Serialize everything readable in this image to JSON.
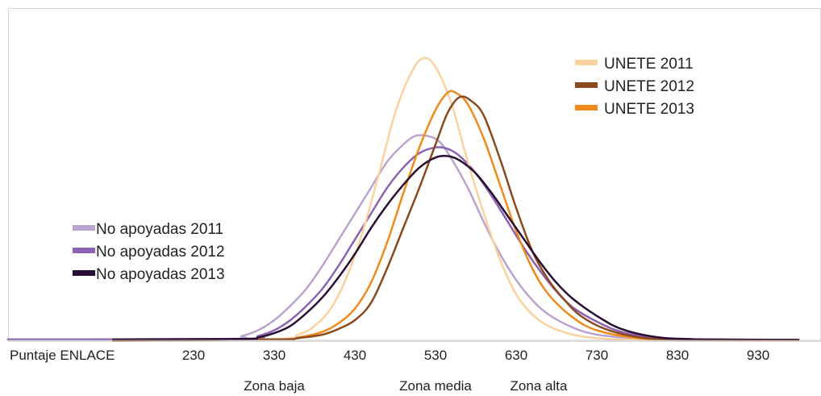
{
  "chart_data": {
    "type": "line",
    "title": "",
    "xlabel": "Puntaje ENLACE",
    "ylabel": "",
    "xlim": [
      130,
      980
    ],
    "ylim": [
      0,
      1.0
    ],
    "x_ticks": [
      230,
      330,
      430,
      530,
      630,
      730,
      830,
      930
    ],
    "x_tick_labels": [
      "230",
      "330",
      "430",
      "530",
      "630",
      "730",
      "830",
      "930"
    ],
    "zones": [
      {
        "label": "Zona baja",
        "x": 330
      },
      {
        "label": "Zona media",
        "x": 530
      },
      {
        "label": "Zona alta",
        "x": 630
      }
    ],
    "grid": false,
    "series": [
      {
        "name": "UNETE 2011",
        "color": "#FAD29E",
        "width": 2.5,
        "legend_group": "unete",
        "points": [
          [
            130,
            0
          ],
          [
            330,
            0.005
          ],
          [
            360,
            0.02
          ],
          [
            380,
            0.05
          ],
          [
            400,
            0.11
          ],
          [
            420,
            0.22
          ],
          [
            440,
            0.38
          ],
          [
            460,
            0.58
          ],
          [
            480,
            0.79
          ],
          [
            500,
            0.93
          ],
          [
            515,
            0.98
          ],
          [
            530,
            0.95
          ],
          [
            550,
            0.82
          ],
          [
            570,
            0.62
          ],
          [
            590,
            0.44
          ],
          [
            610,
            0.28
          ],
          [
            630,
            0.16
          ],
          [
            650,
            0.09
          ],
          [
            670,
            0.05
          ],
          [
            700,
            0.02
          ],
          [
            730,
            0.008
          ],
          [
            780,
            0.002
          ],
          [
            980,
            0.001
          ]
        ]
      },
      {
        "name": "UNETE 2012",
        "color": "#8B4A1E",
        "width": 2.5,
        "legend_group": "unete",
        "points": [
          [
            130,
            0
          ],
          [
            330,
            0.003
          ],
          [
            360,
            0.008
          ],
          [
            390,
            0.02
          ],
          [
            410,
            0.04
          ],
          [
            430,
            0.07
          ],
          [
            450,
            0.13
          ],
          [
            470,
            0.25
          ],
          [
            490,
            0.39
          ],
          [
            510,
            0.53
          ],
          [
            530,
            0.68
          ],
          [
            545,
            0.79
          ],
          [
            560,
            0.845
          ],
          [
            575,
            0.83
          ],
          [
            590,
            0.78
          ],
          [
            610,
            0.63
          ],
          [
            630,
            0.46
          ],
          [
            650,
            0.31
          ],
          [
            670,
            0.21
          ],
          [
            690,
            0.14
          ],
          [
            710,
            0.085
          ],
          [
            740,
            0.04
          ],
          [
            780,
            0.012
          ],
          [
            830,
            0.003
          ],
          [
            980,
            0.002
          ]
        ]
      },
      {
        "name": "UNETE 2013",
        "color": "#F08A1D",
        "width": 2.5,
        "legend_group": "unete",
        "points": [
          [
            130,
            0
          ],
          [
            330,
            0.003
          ],
          [
            360,
            0.01
          ],
          [
            390,
            0.03
          ],
          [
            410,
            0.06
          ],
          [
            430,
            0.11
          ],
          [
            450,
            0.2
          ],
          [
            470,
            0.34
          ],
          [
            490,
            0.51
          ],
          [
            510,
            0.67
          ],
          [
            530,
            0.8
          ],
          [
            545,
            0.86
          ],
          [
            555,
            0.86
          ],
          [
            570,
            0.82
          ],
          [
            590,
            0.7
          ],
          [
            610,
            0.54
          ],
          [
            630,
            0.38
          ],
          [
            650,
            0.25
          ],
          [
            670,
            0.16
          ],
          [
            700,
            0.08
          ],
          [
            730,
            0.035
          ],
          [
            780,
            0.008
          ],
          [
            830,
            0.002
          ],
          [
            980,
            0.001
          ]
        ]
      },
      {
        "name": "No apoyadas 2011",
        "color": "#BBA3D0",
        "width": 2.5,
        "legend_group": "noapoyadas",
        "points": [
          [
            0,
            0.003
          ],
          [
            270,
            0.005
          ],
          [
            290,
            0.015
          ],
          [
            310,
            0.035
          ],
          [
            330,
            0.07
          ],
          [
            350,
            0.12
          ],
          [
            370,
            0.18
          ],
          [
            390,
            0.26
          ],
          [
            410,
            0.35
          ],
          [
            430,
            0.44
          ],
          [
            450,
            0.53
          ],
          [
            470,
            0.62
          ],
          [
            490,
            0.68
          ],
          [
            505,
            0.71
          ],
          [
            520,
            0.71
          ],
          [
            535,
            0.69
          ],
          [
            550,
            0.63
          ],
          [
            570,
            0.53
          ],
          [
            590,
            0.41
          ],
          [
            610,
            0.3
          ],
          [
            630,
            0.21
          ],
          [
            650,
            0.14
          ],
          [
            670,
            0.09
          ],
          [
            700,
            0.045
          ],
          [
            730,
            0.02
          ],
          [
            780,
            0.006
          ],
          [
            830,
            0.001
          ],
          [
            980,
            0.001
          ]
        ]
      },
      {
        "name": "No apoyadas 2012",
        "color": "#8B63B1",
        "width": 2.5,
        "legend_group": "noapoyadas",
        "points": [
          [
            0,
            0.003
          ],
          [
            290,
            0.005
          ],
          [
            310,
            0.015
          ],
          [
            330,
            0.035
          ],
          [
            350,
            0.07
          ],
          [
            370,
            0.12
          ],
          [
            390,
            0.18
          ],
          [
            410,
            0.26
          ],
          [
            430,
            0.35
          ],
          [
            450,
            0.44
          ],
          [
            470,
            0.53
          ],
          [
            490,
            0.6
          ],
          [
            510,
            0.65
          ],
          [
            530,
            0.67
          ],
          [
            545,
            0.665
          ],
          [
            560,
            0.64
          ],
          [
            580,
            0.58
          ],
          [
            600,
            0.5
          ],
          [
            620,
            0.41
          ],
          [
            640,
            0.32
          ],
          [
            660,
            0.24
          ],
          [
            680,
            0.17
          ],
          [
            700,
            0.115
          ],
          [
            730,
            0.065
          ],
          [
            760,
            0.03
          ],
          [
            800,
            0.01
          ],
          [
            850,
            0.003
          ],
          [
            980,
            0.002
          ]
        ]
      },
      {
        "name": "No apoyadas 2013",
        "color": "#2A0E33",
        "width": 2.5,
        "legend_group": "noapoyadas",
        "points": [
          [
            130,
            0.003
          ],
          [
            290,
            0.005
          ],
          [
            310,
            0.01
          ],
          [
            330,
            0.025
          ],
          [
            350,
            0.05
          ],
          [
            370,
            0.095
          ],
          [
            390,
            0.15
          ],
          [
            410,
            0.22
          ],
          [
            430,
            0.3
          ],
          [
            450,
            0.39
          ],
          [
            470,
            0.47
          ],
          [
            490,
            0.54
          ],
          [
            510,
            0.6
          ],
          [
            530,
            0.635
          ],
          [
            545,
            0.64
          ],
          [
            560,
            0.625
          ],
          [
            580,
            0.58
          ],
          [
            600,
            0.51
          ],
          [
            620,
            0.43
          ],
          [
            640,
            0.35
          ],
          [
            660,
            0.27
          ],
          [
            680,
            0.2
          ],
          [
            700,
            0.145
          ],
          [
            730,
            0.085
          ],
          [
            760,
            0.04
          ],
          [
            800,
            0.013
          ],
          [
            850,
            0.004
          ],
          [
            980,
            0.002
          ]
        ]
      }
    ],
    "legends": [
      {
        "group": "unete",
        "placement": "top-right"
      },
      {
        "group": "noapoyadas",
        "placement": "middle-left"
      }
    ]
  }
}
